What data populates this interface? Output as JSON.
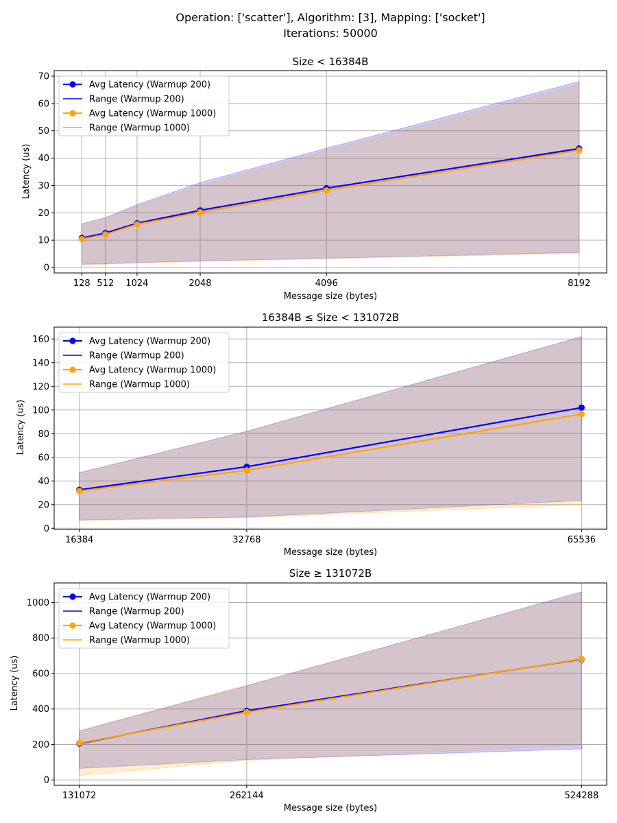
{
  "figure": {
    "suptitle_line1": "Operation: ['scatter'], Algorithm: [3], Mapping: ['socket']",
    "suptitle_line2": "Iterations: 50000"
  },
  "colors": {
    "warmup200": "#0000ff",
    "warmup1000": "#ffa500",
    "grid": "#b0b0b0"
  },
  "legend_entries": [
    "Avg Latency (Warmup 200)",
    "Range (Warmup 200)",
    "Avg Latency (Warmup 1000)",
    "Range (Warmup 1000)"
  ],
  "chart_data": [
    {
      "type": "line",
      "title": "Size < 16384B",
      "xlabel": "Message size (bytes)",
      "ylabel": "Latency (us)",
      "x": [
        128,
        512,
        1024,
        2048,
        4096,
        8192
      ],
      "xticks": [
        128,
        512,
        1024,
        2048,
        4096,
        8192
      ],
      "xlim": [
        -320,
        8640
      ],
      "ylim": [
        -2,
        72
      ],
      "yticks": [
        0,
        10,
        20,
        30,
        40,
        50,
        60,
        70
      ],
      "grid": true,
      "legend": "upper-left",
      "series": [
        {
          "name": "Avg Latency (Warmup 200)",
          "values": [
            10.8,
            12.6,
            16.2,
            20.9,
            29.0,
            43.5
          ],
          "range_min": [
            1.2,
            1.4,
            1.8,
            2.4,
            3.4,
            5.5
          ],
          "range_max": [
            16.0,
            18.2,
            23.0,
            31.0,
            43.6,
            68.0
          ]
        },
        {
          "name": "Avg Latency (Warmup 1000)",
          "values": [
            10.4,
            12.1,
            15.8,
            20.2,
            28.2,
            42.9
          ],
          "range_min": [
            1.0,
            1.2,
            1.6,
            2.2,
            3.2,
            5.2
          ],
          "range_max": [
            15.6,
            17.8,
            22.6,
            30.0,
            42.8,
            67.0
          ]
        }
      ]
    },
    {
      "type": "line",
      "title": "16384B ≤ Size < 131072B",
      "xlabel": "Message size (bytes)",
      "ylabel": "Latency (us)",
      "x": [
        16384,
        32768,
        65536
      ],
      "xticks": [
        16384,
        32768,
        65536
      ],
      "xlim": [
        13926,
        67994
      ],
      "ylim": [
        -1,
        170
      ],
      "yticks": [
        0,
        20,
        40,
        60,
        80,
        100,
        120,
        140,
        160
      ],
      "grid": true,
      "legend": "upper-left",
      "series": [
        {
          "name": "Avg Latency (Warmup 200)",
          "values": [
            32.5,
            52.0,
            102.0
          ],
          "range_min": [
            7.0,
            9.5,
            23.5
          ],
          "range_max": [
            47.0,
            82.0,
            162.0
          ]
        },
        {
          "name": "Avg Latency (Warmup 1000)",
          "values": [
            31.5,
            49.0,
            96.5
          ],
          "range_min": [
            6.5,
            9.0,
            20.0
          ],
          "range_max": [
            46.5,
            81.5,
            161.5
          ]
        }
      ]
    },
    {
      "type": "line",
      "title": "Size ≥ 131072B",
      "xlabel": "Message size (bytes)",
      "ylabel": "Latency (us)",
      "x": [
        131072,
        262144,
        524288
      ],
      "xticks": [
        131072,
        262144,
        524288
      ],
      "xlim": [
        111411,
        543949
      ],
      "ylim": [
        -30,
        1110
      ],
      "yticks": [
        0,
        200,
        400,
        600,
        800,
        1000
      ],
      "grid": true,
      "legend": "upper-left",
      "series": [
        {
          "name": "Avg Latency (Warmup 200)",
          "values": [
            205,
            390,
            680
          ],
          "range_min": [
            65,
            115,
            175
          ],
          "range_max": [
            275,
            530,
            1060
          ]
        },
        {
          "name": "Avg Latency (Warmup 1000)",
          "values": [
            208,
            382,
            682
          ],
          "range_min": [
            25,
            110,
            195
          ],
          "range_max": [
            280,
            535,
            1055
          ]
        }
      ]
    }
  ]
}
